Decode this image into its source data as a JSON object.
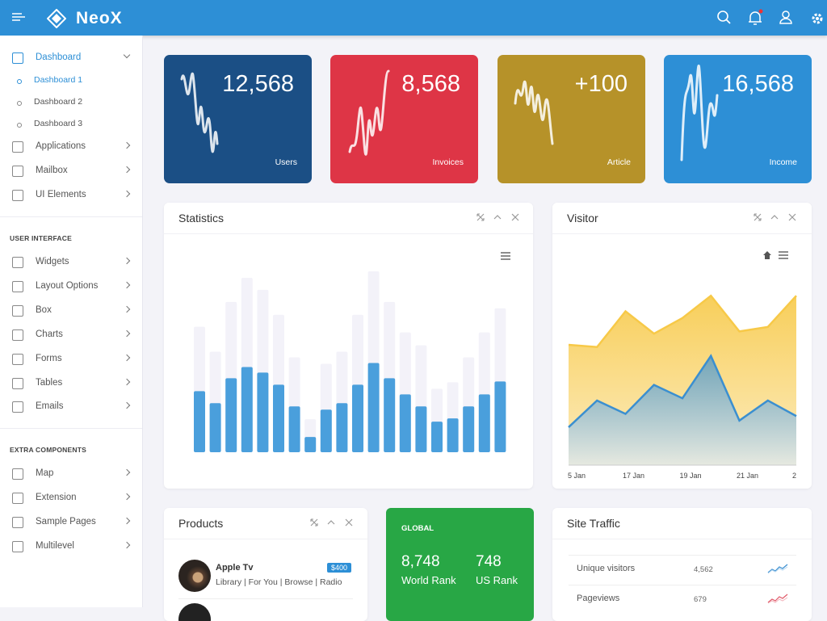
{
  "header": {
    "brand": "NeoX"
  },
  "sidebar": {
    "dashboard": {
      "label": "Dashboard",
      "sub": [
        "Dashboard 1",
        "Dashboard 2",
        "Dashboard 3"
      ]
    },
    "main": [
      "Applications",
      "Mailbox",
      "UI Elements"
    ],
    "user_interface": {
      "heading": "USER INTERFACE",
      "items": [
        "Widgets",
        "Layout Options",
        "Box",
        "Charts",
        "Forms",
        "Tables",
        "Emails"
      ]
    },
    "extra_components": {
      "heading": "EXTRA COMPONENTS",
      "items": [
        "Map",
        "Extension",
        "Sample Pages",
        "Multilevel"
      ]
    }
  },
  "stats": [
    {
      "value": "12,568",
      "label": "Users",
      "color": "#1b4f85"
    },
    {
      "value": "8,568",
      "label": "Invoices",
      "color": "#de3546"
    },
    {
      "value": "+100",
      "label": "Article",
      "color": "#b69229"
    },
    {
      "value": "16,568",
      "label": "Income",
      "color": "#2d8fd6"
    }
  ],
  "statistics": {
    "title": "Statistics",
    "chart_data": {
      "type": "bar",
      "ylim": [
        0,
        230
      ],
      "series": [
        {
          "color": "#f3f2f9",
          "values": [
            156,
            125,
            187,
            217,
            202,
            171,
            118,
            41,
            110,
            125,
            171,
            225,
            187,
            149,
            133,
            79,
            87,
            118,
            149,
            179
          ]
        },
        {
          "color": "#4a9fdc",
          "values": [
            76,
            61,
            92,
            106,
            99,
            84,
            57,
            19,
            53,
            61,
            84,
            111,
            92,
            72,
            57,
            38,
            42,
            57,
            72,
            88
          ]
        }
      ]
    }
  },
  "visitor": {
    "title": "Visitor",
    "chart_data": {
      "type": "area",
      "ylim": [
        0,
        100
      ],
      "categories": [
        "5 Jan",
        null,
        "17 Jan",
        null,
        "19 Jan",
        null,
        "21 Jan",
        null,
        "2"
      ],
      "series": [
        {
          "color": "#f7c948",
          "values": [
            54,
            53,
            69,
            59,
            66,
            76,
            60,
            62,
            76
          ]
        },
        {
          "color": "#3b8fd0",
          "values": [
            17,
            29,
            23,
            36,
            30,
            49,
            20,
            29,
            22
          ]
        }
      ]
    }
  },
  "products": {
    "title": "Products",
    "items": [
      {
        "name": "Apple Tv",
        "price": "$400",
        "tags": "Library | For You | Browse | Radio"
      }
    ]
  },
  "global": {
    "heading": "GLOBAL",
    "ranks": [
      {
        "value": "8,748",
        "label": "World Rank"
      },
      {
        "value": "748",
        "label": "US Rank"
      }
    ]
  },
  "site_traffic": {
    "title": "Site Traffic",
    "rows": [
      {
        "label": "Unique visitors",
        "value": "4,562"
      },
      {
        "label": "Pageviews",
        "value": "679"
      }
    ]
  }
}
